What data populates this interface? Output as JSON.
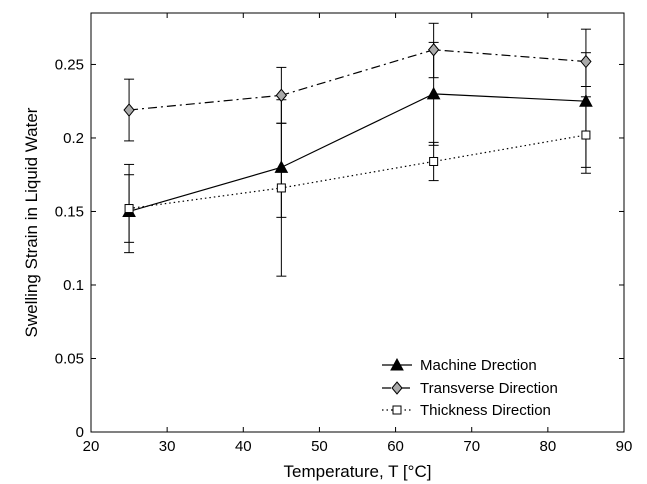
{
  "chart_data": {
    "type": "line",
    "xlabel": "Temperature, T [°C]",
    "ylabel": "Swelling Strain in Liquid Water",
    "xlim": [
      20,
      90
    ],
    "ylim": [
      0,
      0.285
    ],
    "xticks": [
      20,
      30,
      40,
      50,
      60,
      70,
      80,
      90
    ],
    "yticks": [
      0,
      0.05,
      0.1,
      0.15,
      0.2,
      0.25
    ],
    "xtick_labels": [
      "20",
      "30",
      "40",
      "50",
      "60",
      "70",
      "80",
      "90"
    ],
    "ytick_labels": [
      "0",
      "0.05",
      "0.1",
      "0.15",
      "0.2",
      "0.25"
    ],
    "grid": false,
    "legend_position": "bottom-right",
    "series": [
      {
        "name": "Machine Drection",
        "x": [
          25,
          45,
          65,
          85
        ],
        "y": [
          0.15,
          0.18,
          0.23,
          0.225
        ],
        "err_low": [
          0.122,
          0.146,
          0.195,
          0.18
        ],
        "err_high": [
          0.182,
          0.21,
          0.265,
          0.258
        ],
        "line_style": "solid",
        "marker": "triangle",
        "color": "#000000"
      },
      {
        "name": "Transverse Direction",
        "x": [
          25,
          45,
          65,
          85
        ],
        "y": [
          0.219,
          0.229,
          0.26,
          0.252
        ],
        "err_low": [
          0.198,
          0.21,
          0.241,
          0.235
        ],
        "err_high": [
          0.24,
          0.248,
          0.278,
          0.274
        ],
        "line_style": "dashdot",
        "marker": "diamond",
        "color": "#000000"
      },
      {
        "name": "Thickness Direction",
        "x": [
          25,
          45,
          65,
          85
        ],
        "y": [
          0.152,
          0.166,
          0.184,
          0.202
        ],
        "err_low": [
          0.129,
          0.106,
          0.171,
          0.176
        ],
        "err_high": [
          0.175,
          0.226,
          0.197,
          0.228
        ],
        "line_style": "dotted",
        "marker": "square",
        "color": "#000000"
      }
    ]
  }
}
